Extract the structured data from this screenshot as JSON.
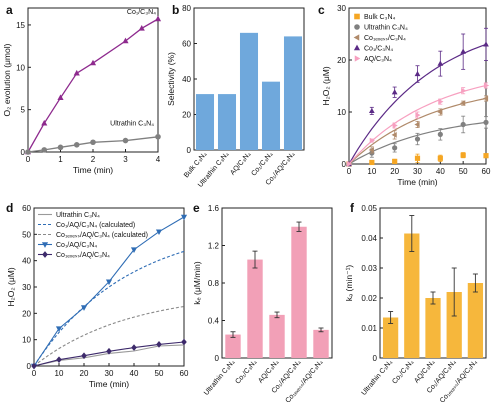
{
  "chart_data": [
    {
      "panel": "a",
      "type": "line",
      "xlabel": "Time (min)",
      "ylabel": "O₂ evolution (μmol)",
      "xlim": [
        0,
        4
      ],
      "ylim": [
        0,
        17
      ],
      "xticks": [
        0,
        1,
        2,
        3,
        4
      ],
      "yticks": [
        0,
        5,
        10,
        15
      ],
      "grid": false,
      "series": [
        {
          "name": "Co₁/C₃N₄",
          "label_position": "top-right",
          "color": "#8e2a8e",
          "marker": "triangle",
          "x": [
            0,
            0.5,
            1,
            1.5,
            2,
            3,
            3.5,
            4
          ],
          "y": [
            0,
            3.4,
            6.4,
            9.3,
            10.5,
            13.1,
            14.6,
            15.7
          ]
        },
        {
          "name": "Ultrathin C₃N₄",
          "label_position": "right",
          "color": "#808080",
          "marker": "circle",
          "x": [
            0,
            0.5,
            1,
            1.5,
            2,
            3,
            4
          ],
          "y": [
            0,
            0.25,
            0.55,
            0.85,
            1.15,
            1.35,
            1.8
          ]
        }
      ]
    },
    {
      "panel": "b",
      "type": "bar",
      "xlabel": "",
      "ylabel": "Selectivity (%)",
      "ylim": [
        0,
        80
      ],
      "yticks": [
        0,
        20,
        40,
        60,
        80
      ],
      "color": "#6fa8dc",
      "categories": [
        "Bulk C₃N₄",
        "Ultrathin C₃N₄",
        "AQ/C₃N₄",
        "Co₁/C₃N₄",
        "Co₁/AQ/C₃N₄"
      ],
      "values": [
        31.5,
        31.5,
        66,
        38.5,
        64
      ]
    },
    {
      "panel": "c",
      "type": "scatter",
      "xlabel": "Time (min)",
      "ylabel": "H₂O₂ (μM)",
      "xlim": [
        0,
        60
      ],
      "ylim": [
        0,
        30
      ],
      "xticks": [
        0,
        10,
        20,
        30,
        40,
        50,
        60
      ],
      "yticks": [
        0,
        10,
        20,
        30
      ],
      "legend": "top-left",
      "x": [
        0,
        10,
        20,
        30,
        40,
        50,
        60
      ],
      "series": [
        {
          "name": "Bulk C₃N₄",
          "color": "#f5a623",
          "marker": "square",
          "fit": false,
          "y": [
            0,
            0.3,
            0.5,
            1.1,
            1.1,
            1.7,
            1.6
          ],
          "err": [
            0,
            0.2,
            0.4,
            0.8,
            0.6,
            0.5,
            0.3
          ]
        },
        {
          "name": "Ultrathin C₃N₄",
          "color": "#808080",
          "marker": "circle",
          "fit": true,
          "y": [
            0,
            2.1,
            3.1,
            4.8,
            5.7,
            7.6,
            8.0
          ],
          "err": [
            0,
            0.8,
            0.8,
            1.1,
            1.1,
            1.6,
            1.1
          ]
        },
        {
          "name": "Co₁ₑₓₑₛₛ/C₃N₄",
          "color": "#b08a6a",
          "marker": "triangle-left",
          "fit": true,
          "y": [
            0,
            2.7,
            5.6,
            7.6,
            10.0,
            11.7,
            12.6
          ],
          "err": [
            0,
            0.6,
            0.8,
            0.6,
            0.6,
            0.4,
            0.5
          ]
        },
        {
          "name": "Co₁/C₃N₄",
          "color": "#5b2a86",
          "marker": "triangle",
          "fit": true,
          "y": [
            0,
            10.2,
            13.8,
            17.3,
            19.3,
            21.6,
            23.0
          ],
          "err": [
            0,
            0.7,
            1.0,
            1.6,
            2.4,
            3.4,
            3.1
          ]
        },
        {
          "name": "AQ/C₃N₄",
          "color": "#f7a0c0",
          "marker": "triangle-right",
          "fit": true,
          "y": [
            0,
            4.5,
            7.4,
            9.4,
            12.0,
            14.1,
            15.1
          ],
          "err": [
            0,
            0.3,
            0.5,
            0.6,
            0.5,
            0.6,
            0.5
          ]
        }
      ]
    },
    {
      "panel": "d",
      "type": "line",
      "xlabel": "Time (min)",
      "ylabel": "H₂O₂ (μM)",
      "xlim": [
        0,
        60
      ],
      "ylim": [
        0,
        60
      ],
      "xticks": [
        0,
        10,
        20,
        30,
        40,
        50,
        60
      ],
      "yticks": [
        0,
        10,
        20,
        30,
        40,
        50,
        60
      ],
      "legend": "top-left",
      "x": [
        0,
        10,
        20,
        30,
        40,
        50,
        60
      ],
      "series": [
        {
          "name": "Ultrathin C₃N₄",
          "color": "#9a9a9a",
          "style": "solid",
          "marker": "none",
          "y": [
            0,
            2.1,
            3.1,
            4.8,
            5.7,
            7.6,
            8.0
          ]
        },
        {
          "name": "Co₁/AQ/C₃N₄ (calculated)",
          "color": "#2f6db5",
          "style": "dash",
          "marker": "none",
          "y": [
            0,
            14.9,
            23.1,
            29.5,
            35.4,
            40.5,
            43.5
          ]
        },
        {
          "name": "Co₁ₑₓₑₛₛ/AQ/C₃N₄ (calculated)",
          "color": "#8a8a8a",
          "style": "dash",
          "marker": "none",
          "y": [
            0,
            5.5,
            10.5,
            14.0,
            17.2,
            20.0,
            22.6
          ]
        },
        {
          "name": "Co₁/AQ/C₃N₄",
          "color": "#2f6db5",
          "style": "solid",
          "marker": "triangle-down",
          "y": [
            0,
            14.2,
            22.2,
            32.0,
            44.2,
            51.0,
            56.6
          ]
        },
        {
          "name": "Co₁ₑₓₑₛₛ/AQ/C₃N₄",
          "color": "#3d2a6b",
          "style": "solid",
          "marker": "diamond",
          "y": [
            0,
            2.4,
            3.9,
            5.6,
            7.0,
            8.2,
            9.1
          ]
        }
      ]
    },
    {
      "panel": "e",
      "type": "bar",
      "xlabel": "",
      "ylabel": "kₑ (μM/min)",
      "ylim": [
        0,
        1.6
      ],
      "yticks": [
        0,
        0.4,
        0.8,
        1.2,
        1.6
      ],
      "color": "#f2a0b7",
      "categories": [
        "Ultrathin C₃N₄",
        "Co₁/C₃N₄",
        "AQ/C₃N₄",
        "Co₁/AQ/C₃N₄",
        "Co₁ₑₓₑₛₛ/AQ/C₃N₄"
      ],
      "values": [
        0.25,
        1.05,
        0.46,
        1.4,
        0.3
      ],
      "errors": [
        0.03,
        0.09,
        0.03,
        0.05,
        0.02
      ]
    },
    {
      "panel": "f",
      "type": "bar",
      "xlabel": "",
      "ylabel": "kₔ (min⁻¹)",
      "ylim": [
        0,
        0.05
      ],
      "yticks": [
        0,
        0.01,
        0.02,
        0.03,
        0.04,
        0.05
      ],
      "color": "#f6b73c",
      "categories": [
        "Ultrathin C₃N₄",
        "Co₁/C₃N₄",
        "AQ/C₃N₄",
        "Co₁/AQ/C₃N₄",
        "Co₁ₑₓₑₛₛ/AQ/C₃N₄"
      ],
      "values": [
        0.0135,
        0.0415,
        0.02,
        0.022,
        0.025
      ],
      "errors": [
        0.002,
        0.006,
        0.002,
        0.008,
        0.003
      ]
    }
  ]
}
